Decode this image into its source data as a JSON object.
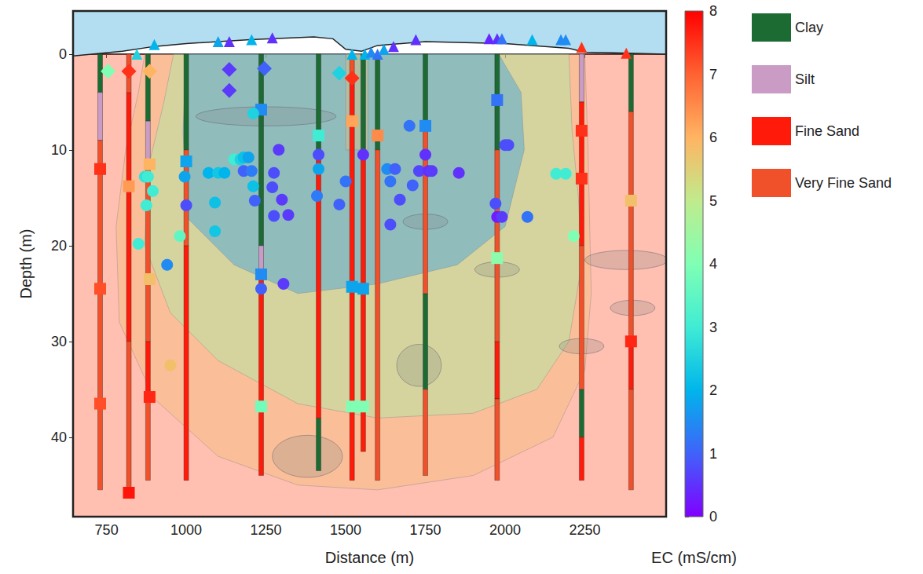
{
  "chart_data": {
    "type": "cross_section",
    "xlabel": "Distance (m)",
    "ylabel": "Depth (m)",
    "xlim": [
      645,
      2505
    ],
    "xticks": [
      750,
      1000,
      1250,
      1500,
      1750,
      2000,
      2250
    ],
    "ylim": [
      -4.5,
      48.3
    ],
    "yticks": [
      0,
      10,
      20,
      30,
      40
    ],
    "grid": false,
    "legend": "right",
    "colorbar": {
      "label": "EC (mS/cm)",
      "range": [
        0,
        8
      ],
      "ticks": [
        0,
        1,
        2,
        3,
        4,
        5,
        6,
        7,
        8
      ]
    },
    "lithology": [
      {
        "name": "Clay",
        "color": "#1b6b33"
      },
      {
        "name": "Silt",
        "color": "#c99bc5"
      },
      {
        "name": "Fine Sand",
        "color": "#ff1a0a"
      },
      {
        "name": "Very Fine Sand",
        "color": "#f0502a"
      }
    ],
    "surface": [
      [
        645,
        0.2
      ],
      [
        800,
        -0.3
      ],
      [
        900,
        -0.8
      ],
      [
        1000,
        -1.1
      ],
      [
        1200,
        -1.5
      ],
      [
        1400,
        -1.8
      ],
      [
        1460,
        -1.6
      ],
      [
        1500,
        -0.5
      ],
      [
        1550,
        -0.3
      ],
      [
        1600,
        -0.9
      ],
      [
        1750,
        -1.3
      ],
      [
        2000,
        -1.1
      ],
      [
        2200,
        -0.6
      ],
      [
        2250,
        -0.2
      ],
      [
        2505,
        0
      ]
    ],
    "zones": [
      {
        "ec": 7.2,
        "polygon": [
          [
            645,
            0
          ],
          [
            2505,
            0
          ],
          [
            2505,
            48.3
          ],
          [
            645,
            48.3
          ]
        ]
      },
      {
        "ec": 5.8,
        "polygon": [
          [
            870,
            0
          ],
          [
            2250,
            0
          ],
          [
            2260,
            10
          ],
          [
            2270,
            25
          ],
          [
            2250,
            33
          ],
          [
            2150,
            40
          ],
          [
            1900,
            44
          ],
          [
            1600,
            45.5
          ],
          [
            1350,
            45
          ],
          [
            1100,
            42
          ],
          [
            900,
            36
          ],
          [
            790,
            28
          ],
          [
            780,
            18
          ],
          [
            810,
            10
          ],
          [
            850,
            4
          ]
        ]
      },
      {
        "ec": 4.3,
        "polygon": [
          [
            960,
            0
          ],
          [
            2200,
            0
          ],
          [
            2210,
            8
          ],
          [
            2230,
            15
          ],
          [
            2240,
            22
          ],
          [
            2200,
            30
          ],
          [
            2100,
            35
          ],
          [
            1900,
            37.5
          ],
          [
            1600,
            38
          ],
          [
            1350,
            36.5
          ],
          [
            1100,
            32
          ],
          [
            950,
            27
          ],
          [
            870,
            20
          ],
          [
            880,
            12
          ],
          [
            930,
            5
          ]
        ]
      },
      {
        "ec": 1.6,
        "polygon": [
          [
            1000,
            0
          ],
          [
            1980,
            0
          ],
          [
            2050,
            4
          ],
          [
            2060,
            10
          ],
          [
            2000,
            18
          ],
          [
            1850,
            22
          ],
          [
            1600,
            24
          ],
          [
            1350,
            25
          ],
          [
            1150,
            22
          ],
          [
            1000,
            17
          ],
          [
            990,
            8
          ]
        ]
      },
      {
        "ec": 5.8,
        "polygon": [
          [
            1500,
            0
          ],
          [
            1570,
            0
          ],
          [
            1570,
            10
          ],
          [
            1500,
            10
          ]
        ]
      }
    ],
    "lenses": [
      [
        1750,
        17.5,
        70,
        0.8
      ],
      [
        1975,
        22.5,
        70,
        0.8
      ],
      [
        1730,
        32.5,
        70,
        2.2
      ],
      [
        2240,
        30.5,
        70,
        0.8
      ],
      [
        2400,
        26.5,
        70,
        0.8
      ],
      [
        2380,
        21.5,
        130,
        1.0
      ],
      [
        1380,
        42,
        110,
        2.2
      ],
      [
        1250,
        6.5,
        220,
        1.0
      ]
    ],
    "boreholes": [
      {
        "x": 730,
        "intervals": [
          [
            0,
            4,
            "Clay"
          ],
          [
            4,
            9,
            "Silt"
          ],
          [
            9,
            45.5,
            "Very Fine Sand"
          ]
        ]
      },
      {
        "x": 820,
        "intervals": [
          [
            0,
            4,
            "Very Fine Sand"
          ],
          [
            4,
            30,
            "Fine Sand"
          ],
          [
            30,
            46,
            "Very Fine Sand"
          ]
        ]
      },
      {
        "x": 880,
        "intervals": [
          [
            0,
            7,
            "Clay"
          ],
          [
            7,
            12,
            "Silt"
          ],
          [
            12,
            30,
            "Very Fine Sand"
          ],
          [
            30,
            36,
            "Fine Sand"
          ],
          [
            36,
            44.5,
            "Very Fine Sand"
          ]
        ]
      },
      {
        "x": 1000,
        "intervals": [
          [
            0,
            10,
            "Clay"
          ],
          [
            10,
            20,
            "Very Fine Sand"
          ],
          [
            20,
            44.5,
            "Fine Sand"
          ]
        ]
      },
      {
        "x": 1235,
        "intervals": [
          [
            0,
            20,
            "Clay"
          ],
          [
            20,
            23,
            "Silt"
          ],
          [
            23,
            44,
            "Fine Sand"
          ]
        ]
      },
      {
        "x": 1415,
        "intervals": [
          [
            0,
            10,
            "Clay"
          ],
          [
            10,
            38,
            "Fine Sand"
          ],
          [
            38,
            43.5,
            "Clay"
          ]
        ]
      },
      {
        "x": 1520,
        "intervals": [
          [
            0,
            3,
            "Very Fine Sand"
          ],
          [
            3,
            44.5,
            "Fine Sand"
          ]
        ]
      },
      {
        "x": 1555,
        "intervals": [
          [
            0,
            10,
            "Clay"
          ],
          [
            10,
            41.5,
            "Fine Sand"
          ]
        ]
      },
      {
        "x": 1600,
        "intervals": [
          [
            0,
            10,
            "Clay"
          ],
          [
            10,
            44.5,
            "Very Fine Sand"
          ]
        ]
      },
      {
        "x": 1750,
        "intervals": [
          [
            0,
            8,
            "Clay"
          ],
          [
            8,
            25,
            "Very Fine Sand"
          ],
          [
            25,
            35,
            "Clay"
          ],
          [
            35,
            44,
            "Very Fine Sand"
          ]
        ]
      },
      {
        "x": 1975,
        "intervals": [
          [
            0,
            10,
            "Clay"
          ],
          [
            10,
            30,
            "Very Fine Sand"
          ],
          [
            30,
            36,
            "Fine Sand"
          ],
          [
            36,
            44.5,
            "Very Fine Sand"
          ]
        ]
      },
      {
        "x": 2240,
        "intervals": [
          [
            0,
            5,
            "Silt"
          ],
          [
            5,
            20,
            "Fine Sand"
          ],
          [
            20,
            35,
            "Very Fine Sand"
          ],
          [
            35,
            40,
            "Clay"
          ],
          [
            40,
            44.5,
            "Fine Sand"
          ]
        ]
      },
      {
        "x": 2395,
        "intervals": [
          [
            0,
            6,
            "Clay"
          ],
          [
            6,
            30,
            "Very Fine Sand"
          ],
          [
            30,
            35,
            "Fine Sand"
          ],
          [
            35,
            45.5,
            "Very Fine Sand"
          ]
        ]
      }
    ],
    "series": [
      {
        "marker": "triangle",
        "values": [
          [
            845,
            0,
            2.5
          ],
          [
            900,
            -1,
            2
          ],
          [
            1100,
            -1.3,
            1.8
          ],
          [
            1135,
            -1.3,
            0.5
          ],
          [
            1205,
            -1.5,
            2
          ],
          [
            1270,
            -1.7,
            0.5
          ],
          [
            1520,
            0,
            2
          ],
          [
            1560,
            0,
            2
          ],
          [
            1580,
            -0.2,
            1.5
          ],
          [
            1600,
            0,
            1.2
          ],
          [
            1620,
            -0.5,
            1.8
          ],
          [
            1650,
            -0.8,
            0.5
          ],
          [
            1720,
            -1.5,
            0.5
          ],
          [
            1950,
            -1.6,
            0.4
          ],
          [
            1975,
            -1.6,
            0.5
          ],
          [
            1990,
            -1.6,
            1.2
          ],
          [
            2085,
            -1.5,
            2
          ],
          [
            2175,
            -1.5,
            1.5
          ],
          [
            2190,
            -1.5,
            1.5
          ],
          [
            2240,
            -0.7,
            7.5
          ],
          [
            2380,
            -0.1,
            7.5
          ]
        ]
      },
      {
        "marker": "diamond",
        "values": [
          [
            755,
            1.8,
            4
          ],
          [
            820,
            1.8,
            7.5
          ],
          [
            885,
            1.8,
            6
          ],
          [
            1135,
            1.6,
            0.6
          ],
          [
            1135,
            3.8,
            0.6
          ],
          [
            1245,
            1.5,
            1
          ],
          [
            1480,
            2,
            2.5
          ],
          [
            1520,
            2.5,
            7.5
          ]
        ]
      },
      {
        "marker": "square",
        "values": [
          [
            730,
            12,
            7.5
          ],
          [
            730,
            24.5,
            7.2
          ],
          [
            730,
            36.5,
            7.2
          ],
          [
            820,
            13.8,
            6.3
          ],
          [
            820,
            45.8,
            7.8
          ],
          [
            885,
            11.5,
            6
          ],
          [
            885,
            23.5,
            5.8
          ],
          [
            885,
            35.8,
            7.6
          ],
          [
            1000,
            11.2,
            1.8
          ],
          [
            1235,
            5.8,
            1.5
          ],
          [
            1235,
            23,
            1.5
          ],
          [
            1235,
            36.8,
            3.8
          ],
          [
            1415,
            8.5,
            3
          ],
          [
            1520,
            7,
            6.2
          ],
          [
            1520,
            24.3,
            1.8
          ],
          [
            1520,
            36.8,
            4
          ],
          [
            1555,
            24.5,
            1.8
          ],
          [
            1555,
            36.8,
            4
          ],
          [
            1600,
            8.5,
            6.5
          ],
          [
            1750,
            7.5,
            1.5
          ],
          [
            1975,
            4.8,
            1.2
          ],
          [
            1975,
            21.3,
            4.2
          ],
          [
            2240,
            8,
            7.5
          ],
          [
            2240,
            13,
            7.5
          ],
          [
            2395,
            15.3,
            5.8
          ],
          [
            2395,
            30,
            7.6
          ]
        ]
      },
      {
        "marker": "circle",
        "values": [
          [
            1210,
            6.2,
            2.5
          ],
          [
            850,
            19.8,
            3
          ],
          [
            870,
            12.8,
            2.8
          ],
          [
            880,
            12.8,
            3
          ],
          [
            875,
            15.8,
            3
          ],
          [
            895,
            14.3,
            3
          ],
          [
            940,
            22,
            1.5
          ],
          [
            950,
            32.5,
            5.8
          ],
          [
            980,
            19,
            3.5
          ],
          [
            995,
            12.8,
            1.8
          ],
          [
            1000,
            15.8,
            0.8
          ],
          [
            1070,
            12.4,
            2
          ],
          [
            1100,
            12.4,
            2.3
          ],
          [
            1120,
            12.4,
            2
          ],
          [
            1090,
            15.5,
            2.2
          ],
          [
            1090,
            18.5,
            2.3
          ],
          [
            1150,
            11,
            3
          ],
          [
            1170,
            11,
            2.5
          ],
          [
            1180,
            10.8,
            2.2
          ],
          [
            1195,
            10.8,
            1.8
          ],
          [
            1180,
            12.2,
            1
          ],
          [
            1205,
            12.2,
            1.3
          ],
          [
            1210,
            13.8,
            2.2
          ],
          [
            1215,
            15.3,
            1
          ],
          [
            1235,
            24.5,
            1
          ],
          [
            1275,
            12.4,
            0.8
          ],
          [
            1290,
            10,
            0.6
          ],
          [
            1270,
            13.9,
            0.8
          ],
          [
            1275,
            16.9,
            0.8
          ],
          [
            1300,
            15.2,
            0.6
          ],
          [
            1320,
            16.8,
            0.6
          ],
          [
            1305,
            24,
            0.6
          ],
          [
            1415,
            10.5,
            0.8
          ],
          [
            1415,
            12,
            1.8
          ],
          [
            1410,
            14.8,
            1.3
          ],
          [
            1480,
            15.7,
            1
          ],
          [
            1500,
            13.3,
            1.2
          ],
          [
            1555,
            10.5,
            0.5
          ],
          [
            1630,
            12,
            1.5
          ],
          [
            1640,
            13.3,
            1.2
          ],
          [
            1655,
            12,
            1
          ],
          [
            1670,
            15.2,
            0.8
          ],
          [
            1640,
            17.8,
            0.8
          ],
          [
            1700,
            7.5,
            1.2
          ],
          [
            1710,
            13.7,
            1
          ],
          [
            1730,
            12.2,
            0.7
          ],
          [
            1750,
            10.5,
            0.5
          ],
          [
            1760,
            12.2,
            0.5
          ],
          [
            1770,
            12.2,
            0.6
          ],
          [
            1855,
            12.4,
            0.5
          ],
          [
            1970,
            15.6,
            0.8
          ],
          [
            1975,
            17,
            0.3
          ],
          [
            1990,
            17,
            0.6
          ],
          [
            2000,
            9.5,
            0.8
          ],
          [
            2010,
            9.5,
            0.8
          ],
          [
            2070,
            17,
            1.2
          ],
          [
            2160,
            12.5,
            3
          ],
          [
            2190,
            12.5,
            3
          ],
          [
            2215,
            19,
            4
          ]
        ]
      }
    ]
  }
}
